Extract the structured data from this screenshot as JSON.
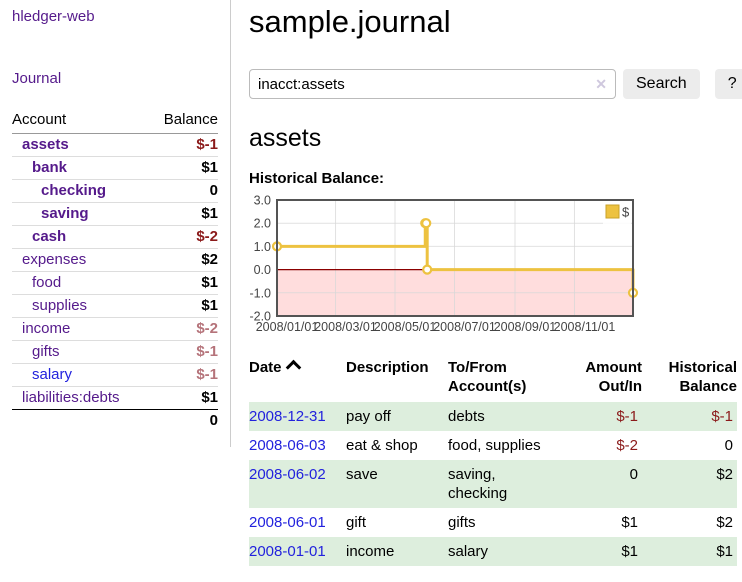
{
  "colors": {
    "accent_purple": "#551a8b",
    "link_blue": "#2222dd",
    "negative_dark": "#8b1a1a",
    "negative_light": "#b5737a",
    "row_highlight_green": "#ddeedd",
    "chart_line": "#edc240",
    "chart_negative_fill": "#ffdddd",
    "chart_zero_line": "#8b0000"
  },
  "sidebar": {
    "brand": "hledger-web",
    "nav": [
      {
        "label": "Journal"
      }
    ],
    "accounts_table": {
      "headers": [
        "Account",
        "Balance"
      ],
      "rows": [
        {
          "account": "assets",
          "depth": 1,
          "bold": true,
          "balance": "$-1",
          "negative": "strong"
        },
        {
          "account": "bank",
          "depth": 2,
          "bold": true,
          "balance": "$1"
        },
        {
          "account": "checking",
          "depth": 3,
          "bold": true,
          "balance": "0"
        },
        {
          "account": "saving",
          "depth": 3,
          "bold": true,
          "balance": "$1"
        },
        {
          "account": "cash",
          "depth": 2,
          "bold": true,
          "balance": "$-2",
          "negative": "strong"
        },
        {
          "account": "expenses",
          "depth": 1,
          "bold": false,
          "balance": "$2"
        },
        {
          "account": "food",
          "depth": 2,
          "bold": false,
          "balance": "$1"
        },
        {
          "account": "supplies",
          "depth": 2,
          "bold": false,
          "balance": "$1"
        },
        {
          "account": "income",
          "depth": 1,
          "bold": false,
          "balance": "$-2",
          "negative": "soft"
        },
        {
          "account": "gifts",
          "depth": 2,
          "bold": false,
          "balance": "$-1",
          "negative": "soft"
        },
        {
          "account": "salary",
          "depth": 2,
          "bold": false,
          "balance": "$-1",
          "negative": "soft",
          "link_color": "blue"
        },
        {
          "account": "liabilities:debts",
          "depth": 1,
          "bold": false,
          "balance": "$1"
        }
      ],
      "total": "0"
    }
  },
  "main": {
    "title": "sample.journal",
    "search": {
      "value": "inacct:assets",
      "clear_icon": "✕",
      "button_label": "Search",
      "help_label": "?"
    },
    "account_heading": "assets",
    "chart_label": "Historical Balance:",
    "chart_data": {
      "type": "line",
      "style": "step-after",
      "title": "Historical Balance",
      "series": [
        {
          "name": "$",
          "color": "#edc240",
          "points": [
            [
              "2008-01-01",
              1
            ],
            [
              "2008-06-01",
              2
            ],
            [
              "2008-06-02",
              2
            ],
            [
              "2008-06-03",
              0
            ],
            [
              "2008-12-31",
              -1
            ]
          ]
        }
      ],
      "x_range": [
        "2008-01-01",
        "2008-12-31"
      ],
      "xticks": [
        "2008/01/01",
        "2008/03/01",
        "2008/05/01",
        "2008/07/01",
        "2008/09/01",
        "2008/11/01"
      ],
      "yticks": [
        3.0,
        2.0,
        1.0,
        0.0,
        -1.0,
        -2.0
      ],
      "ylim": [
        -2,
        3
      ],
      "grid": true,
      "legend": {
        "position": "top-right",
        "label": "$"
      }
    },
    "transactions": {
      "headers": [
        {
          "lines": [
            "Date"
          ],
          "sort": "asc"
        },
        {
          "lines": [
            "Description"
          ]
        },
        {
          "lines": [
            "To/From",
            "Account(s)"
          ]
        },
        {
          "lines": [
            "Amount",
            "Out/In"
          ],
          "align": "right"
        },
        {
          "lines": [
            "Historical",
            "Balance"
          ],
          "align": "right"
        }
      ],
      "rows": [
        {
          "date": "2008-12-31",
          "description": "pay off",
          "accounts": "debts",
          "amount": "$-1",
          "amount_negative": true,
          "balance": "$-1",
          "balance_negative": true
        },
        {
          "date": "2008-06-03",
          "description": "eat & shop",
          "accounts": "food, supplies",
          "amount": "$-2",
          "amount_negative": true,
          "balance": "0",
          "balance_negative": false
        },
        {
          "date": "2008-06-02",
          "description": "save",
          "accounts": "saving, checking",
          "amount": "0",
          "amount_negative": false,
          "balance": "$2",
          "balance_negative": false
        },
        {
          "date": "2008-06-01",
          "description": "gift",
          "accounts": "gifts",
          "amount": "$1",
          "amount_negative": false,
          "balance": "$2",
          "balance_negative": false
        },
        {
          "date": "2008-01-01",
          "description": "income",
          "accounts": "salary",
          "amount": "$1",
          "amount_negative": false,
          "balance": "$1",
          "balance_negative": false
        }
      ]
    }
  }
}
